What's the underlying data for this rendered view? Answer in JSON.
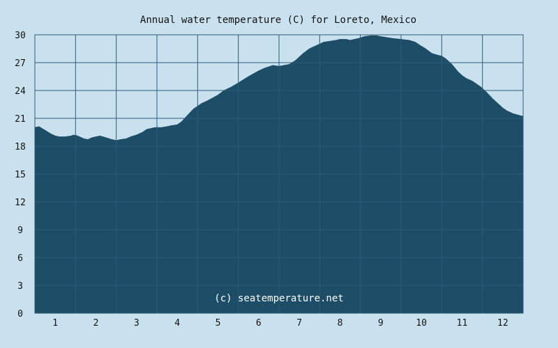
{
  "chart_data": {
    "type": "area",
    "title": "Annual water temperature (C) for Loreto, Mexico",
    "watermark": "(c) seatemperature.net",
    "xlabel": "",
    "ylabel": "",
    "x_unit": "month",
    "x_categories": [
      "1",
      "2",
      "3",
      "4",
      "5",
      "6",
      "7",
      "8",
      "9",
      "10",
      "11",
      "12"
    ],
    "xlim": [
      0.5,
      12.5
    ],
    "ylim": [
      0,
      30
    ],
    "y_ticks": [
      "0",
      "3",
      "6",
      "9",
      "12",
      "15",
      "18",
      "21",
      "24",
      "27",
      "30"
    ],
    "grid": true,
    "legend": "none",
    "colors": {
      "background": "#c9e1ee",
      "fill": "#1e4d67",
      "grid": "#2b5a78"
    },
    "series": [
      {
        "x": [
          0.5,
          0.6,
          0.75,
          0.9,
          1.0,
          1.1,
          1.25,
          1.4,
          1.45,
          1.55,
          1.6,
          1.7,
          1.8,
          1.9,
          2.0,
          2.1,
          2.25,
          2.4,
          2.5,
          2.6,
          2.75,
          2.85,
          3.0,
          3.15,
          3.25,
          3.45,
          3.6,
          3.75,
          3.85,
          4.0,
          4.1,
          4.25,
          4.4,
          4.5,
          4.6,
          4.75,
          5.0,
          5.15,
          5.3,
          5.5,
          5.75,
          6.0,
          6.15,
          6.35,
          6.5,
          6.75,
          6.9,
          7.0,
          7.1,
          7.25,
          7.45,
          7.6,
          7.75,
          7.9,
          8.0,
          8.15,
          8.25,
          8.45,
          8.6,
          8.75,
          8.9,
          9.0,
          9.15,
          9.3,
          9.5,
          9.7,
          9.85,
          9.95,
          10.1,
          10.25,
          10.4,
          10.5,
          10.6,
          10.75,
          10.9,
          11.0,
          11.1,
          11.25,
          11.45,
          11.6,
          11.75,
          11.9,
          12.0,
          12.1,
          12.25,
          12.5
        ],
        "y": [
          20.0,
          20.1,
          19.7,
          19.3,
          19.1,
          19.0,
          19.0,
          19.1,
          19.2,
          19.1,
          19.0,
          18.8,
          18.7,
          18.9,
          19.0,
          19.1,
          18.9,
          18.7,
          18.6,
          18.7,
          18.8,
          19.0,
          19.2,
          19.5,
          19.8,
          20.0,
          20.0,
          20.1,
          20.2,
          20.3,
          20.6,
          21.3,
          22.0,
          22.3,
          22.6,
          22.9,
          23.5,
          24.0,
          24.3,
          24.8,
          25.5,
          26.1,
          26.4,
          26.7,
          26.6,
          26.8,
          27.2,
          27.6,
          28.0,
          28.5,
          28.9,
          29.2,
          29.3,
          29.4,
          29.5,
          29.5,
          29.4,
          29.6,
          29.8,
          29.9,
          29.9,
          29.8,
          29.7,
          29.6,
          29.5,
          29.4,
          29.2,
          28.9,
          28.5,
          28.0,
          27.8,
          27.7,
          27.4,
          26.8,
          26.0,
          25.6,
          25.3,
          25.0,
          24.4,
          23.8,
          23.1,
          22.5,
          22.1,
          21.8,
          21.5,
          21.2
        ]
      }
    ]
  }
}
